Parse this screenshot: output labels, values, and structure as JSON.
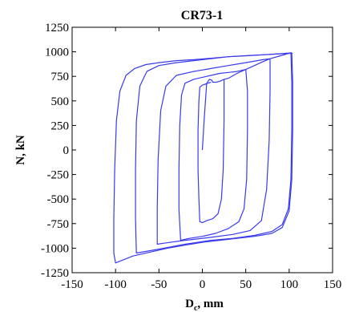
{
  "chart_data": {
    "type": "line",
    "title": "CR73-1",
    "xlabel": {
      "main": "D",
      "sub": "c",
      "rest": ", mm"
    },
    "ylabel": "N, kN",
    "xlim": [
      -150,
      150
    ],
    "ylim": [
      -1250,
      1250
    ],
    "xticks": [
      -150,
      -100,
      -50,
      0,
      50,
      100,
      150
    ],
    "yticks": [
      1250,
      1000,
      750,
      500,
      250,
      0,
      -250,
      -500,
      -750,
      -1000,
      -1250
    ],
    "grid": false,
    "series_color": "#3a3aee",
    "series": [
      {
        "x": [
          0,
          2,
          5,
          8,
          11,
          12,
          14,
          16,
          20,
          25,
          25,
          24,
          22,
          18,
          12,
          5,
          0,
          -3,
          -4,
          -5,
          -5,
          -4,
          -3,
          0,
          3,
          6,
          10
        ],
        "y": [
          0,
          300,
          680,
          720,
          710,
          690,
          690,
          690,
          700,
          720,
          300,
          -200,
          -500,
          -650,
          -700,
          -720,
          -740,
          -730,
          -500,
          -200,
          200,
          500,
          640,
          660,
          670,
          680,
          690
        ]
      },
      {
        "x": [
          25,
          30,
          40,
          50,
          52,
          52,
          51,
          48,
          42,
          30,
          15,
          0,
          -15,
          -25,
          -27,
          -27,
          -26,
          -24,
          -20,
          -10,
          0,
          10,
          20,
          30,
          40,
          50
        ],
        "y": [
          720,
          730,
          780,
          820,
          600,
          200,
          -300,
          -600,
          -730,
          -800,
          -850,
          -880,
          -900,
          -920,
          -600,
          -200,
          250,
          560,
          680,
          720,
          740,
          760,
          780,
          790,
          800,
          820
        ]
      },
      {
        "x": [
          50,
          60,
          70,
          78,
          78,
          77,
          74,
          68,
          55,
          35,
          10,
          -20,
          -45,
          -52,
          -52,
          -51,
          -48,
          -42,
          -30,
          -10,
          10,
          30,
          50,
          70,
          78
        ],
        "y": [
          820,
          860,
          900,
          930,
          600,
          100,
          -400,
          -720,
          -820,
          -860,
          -890,
          -920,
          -950,
          -960,
          -600,
          -100,
          400,
          650,
          760,
          800,
          830,
          860,
          890,
          920,
          930
        ]
      },
      {
        "x": [
          78,
          90,
          102,
          103,
          103,
          102,
          99,
          92,
          80,
          60,
          35,
          10,
          -20,
          -50,
          -76,
          -77,
          -77,
          -76,
          -72,
          -64,
          -50,
          -30,
          -10,
          10,
          30,
          50,
          70,
          90,
          103
        ],
        "y": [
          930,
          960,
          990,
          700,
          200,
          -300,
          -600,
          -760,
          -830,
          -870,
          -900,
          -920,
          -960,
          -1010,
          -1050,
          -700,
          -200,
          300,
          650,
          800,
          860,
          890,
          910,
          930,
          950,
          960,
          970,
          980,
          990
        ]
      },
      {
        "x": [
          103,
          104,
          104,
          103,
          100,
          92,
          80,
          60,
          40,
          20,
          0,
          -20,
          -40,
          -60,
          -80,
          -100,
          -102,
          -102,
          -101,
          -99,
          -95,
          -88,
          -78,
          -65,
          -50,
          -30,
          -10,
          10,
          30,
          50,
          70,
          90,
          104
        ],
        "y": [
          990,
          700,
          200,
          -300,
          -620,
          -790,
          -850,
          -880,
          -900,
          -920,
          -940,
          -970,
          -1000,
          -1040,
          -1080,
          -1150,
          -1050,
          -700,
          -200,
          300,
          600,
          760,
          830,
          870,
          890,
          910,
          920,
          935,
          950,
          960,
          970,
          980,
          985
        ]
      }
    ]
  }
}
